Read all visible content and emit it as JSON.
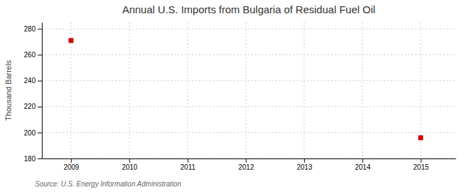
{
  "chart_data": {
    "type": "scatter",
    "title": "Annual U.S. Imports from Bulgaria of Residual Fuel Oil",
    "ylabel": "Thousand Barrels",
    "source": "Source: U.S. Energy Information Administration",
    "x": [
      2009,
      2015
    ],
    "values": [
      271,
      196
    ],
    "color": "#cc0000",
    "marker": "square",
    "xlim": [
      2008.5,
      2015.6
    ],
    "ylim": [
      180,
      285
    ],
    "xticks": [
      2009,
      2010,
      2011,
      2012,
      2013,
      2014,
      2015
    ],
    "yticks": [
      180,
      200,
      220,
      240,
      260,
      280
    ],
    "grid": true
  }
}
